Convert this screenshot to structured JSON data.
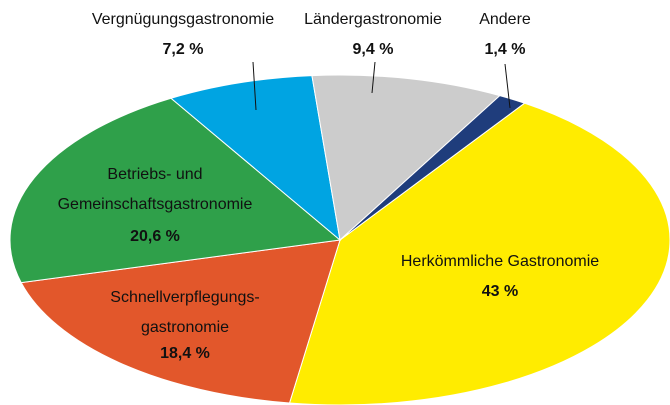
{
  "chart_data": {
    "type": "pie",
    "categories": [
      "Herkömmliche Gastronomie",
      "Schnellverpflegungs-\ngastronomie",
      "Betriebs- und\nGemeinschaftsgastronomie",
      "Vergnügungsgastronomie",
      "Ländergastronomie",
      "Andere"
    ],
    "values": [
      43,
      18.4,
      20.6,
      7.2,
      9.4,
      1.4
    ],
    "value_labels": [
      "43 %",
      "18,4 %",
      "20,6 %",
      "7,2 %",
      "9,4 %",
      "1,4 %"
    ],
    "colors": [
      "#ffec00",
      "#e2572b",
      "#2fa04a",
      "#00a4e2",
      "#cccccc",
      "#1f3d7c"
    ]
  }
}
